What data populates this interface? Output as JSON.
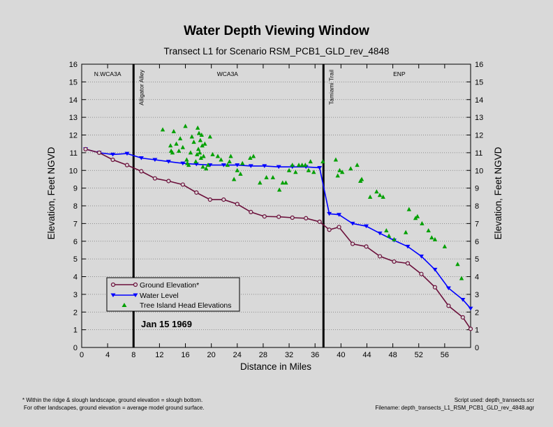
{
  "title": "Water Depth Viewing Window",
  "subtitle": "Transect L1 for Scenario RSM_PCB1_GLD_rev_4848",
  "date_label": "Jan 15 1969",
  "footnote_left": [
    "* Within the ridge & slough landscape, ground elevation = slough bottom.",
    "For other landscapes, ground elevation = average model ground surface."
  ],
  "footnote_right": [
    "Script used: depth_transects.scr",
    "Filename: depth_transects_L1_RSM_PCB1_GLD_rev_4848.agr"
  ],
  "chart_data": {
    "type": "line",
    "xlabel": "Distance in Miles",
    "ylabel_left": "Elevation, Feet NGVD",
    "ylabel_right": "Elevation, Feet NGVD",
    "xlim": [
      0,
      60
    ],
    "ylim": [
      0,
      16
    ],
    "x_ticks": [
      0,
      4,
      8,
      12,
      16,
      20,
      24,
      28,
      32,
      36,
      40,
      44,
      48,
      52,
      56
    ],
    "y_ticks": [
      0,
      1,
      2,
      3,
      4,
      5,
      6,
      7,
      8,
      9,
      10,
      11,
      12,
      13,
      14,
      15,
      16
    ],
    "colors": {
      "ground": "#6b0f3a",
      "water": "#0000ff",
      "tree": "#00a000",
      "background": "#d9d9d9"
    },
    "regions": [
      {
        "label": "N.WCA3A",
        "x": 4
      },
      {
        "label": "WCA3A",
        "x": 22.5
      },
      {
        "label": "ENP",
        "x": 49
      }
    ],
    "boundaries": [
      {
        "x": 8,
        "label": "Alligator Alley"
      },
      {
        "x": 37.3,
        "label": "Tamiami Trail"
      }
    ],
    "legend": {
      "placement": "lower-left",
      "entries": [
        "Ground Elevation*",
        "Water Level",
        "Tree Island Head Elevations"
      ]
    },
    "series": [
      {
        "name": "Ground Elevation*",
        "marker": "circle",
        "x": [
          0.6,
          2.7,
          4.8,
          7.0,
          9.2,
          11.3,
          13.4,
          15.6,
          17.7,
          19.8,
          21.9,
          24.0,
          26.1,
          28.2,
          30.4,
          32.5,
          34.6,
          36.7,
          38.2,
          39.7,
          41.8,
          43.9,
          46.0,
          48.2,
          50.3,
          52.4,
          54.5,
          56.6,
          58.8,
          60.0
        ],
        "y": [
          11.2,
          11.0,
          10.6,
          10.3,
          9.95,
          9.55,
          9.4,
          9.2,
          8.75,
          8.35,
          8.35,
          8.1,
          7.65,
          7.4,
          7.38,
          7.33,
          7.3,
          7.1,
          6.65,
          6.8,
          5.85,
          5.7,
          5.15,
          4.85,
          4.75,
          4.15,
          3.4,
          2.35,
          1.7,
          1.05
        ]
      },
      {
        "name": "Water Level",
        "marker": "triangle-down",
        "x": [
          0.6,
          2.7,
          4.8,
          7.0,
          9.2,
          11.3,
          13.4,
          15.6,
          17.7,
          19.8,
          21.9,
          24.0,
          26.1,
          28.2,
          30.4,
          32.5,
          34.6,
          36.7,
          38.2,
          39.7,
          41.8,
          43.9,
          46.0,
          48.2,
          50.3,
          52.4,
          54.5,
          56.6,
          58.8,
          60.0
        ],
        "y": [
          11.2,
          11.0,
          10.9,
          10.95,
          10.7,
          10.6,
          10.5,
          10.4,
          10.35,
          10.3,
          10.3,
          10.3,
          10.25,
          10.25,
          10.2,
          10.2,
          10.2,
          10.15,
          7.55,
          7.5,
          7.0,
          6.85,
          6.45,
          6.05,
          5.7,
          5.15,
          4.4,
          3.35,
          2.7,
          2.2
        ]
      },
      {
        "name": "Tree Island Head Elevations",
        "marker": "triangle-up",
        "x": [
          12.5,
          13.7,
          13.8,
          14.0,
          14.2,
          14.6,
          15.0,
          15.2,
          15.6,
          16.0,
          16.2,
          16.3,
          16.5,
          16.8,
          17.0,
          17.3,
          17.6,
          17.8,
          17.9,
          18.0,
          18.1,
          18.2,
          18.3,
          18.4,
          18.5,
          18.6,
          18.7,
          18.8,
          19.0,
          19.2,
          19.5,
          19.8,
          20.2,
          21.0,
          21.5,
          22.5,
          22.8,
          23.0,
          23.5,
          24.0,
          24.5,
          24.8,
          26.0,
          26.5,
          27.5,
          28.5,
          29.5,
          30.5,
          31.0,
          31.5,
          32.0,
          32.5,
          33.0,
          33.5,
          34.0,
          34.5,
          35.0,
          35.3,
          35.8,
          37.2,
          39.2,
          39.5,
          39.8,
          40.2,
          41.5,
          42.5,
          43.0,
          43.2,
          44.5,
          45.5,
          46.0,
          46.5,
          47.0,
          47.4,
          48.2,
          50.0,
          50.5,
          51.5,
          51.8,
          52.5,
          53.5,
          54.0,
          54.5,
          56.0,
          58.0,
          58.6
        ],
        "y": [
          12.3,
          11.4,
          11.1,
          11.0,
          12.2,
          11.5,
          11.1,
          11.8,
          11.3,
          12.5,
          10.6,
          10.4,
          10.3,
          11.0,
          11.9,
          11.6,
          10.5,
          10.9,
          12.4,
          11.2,
          12.1,
          11.0,
          11.7,
          10.7,
          12.0,
          11.4,
          10.2,
          10.8,
          11.5,
          10.1,
          10.3,
          11.9,
          10.9,
          10.8,
          10.6,
          10.3,
          10.5,
          10.8,
          9.5,
          10.0,
          9.8,
          10.4,
          10.7,
          10.8,
          9.3,
          9.6,
          9.6,
          8.9,
          9.3,
          9.3,
          10.0,
          10.3,
          9.9,
          10.3,
          10.3,
          10.3,
          10.0,
          10.5,
          9.9,
          10.5,
          10.6,
          9.7,
          10.0,
          9.9,
          10.1,
          10.3,
          9.4,
          9.5,
          8.5,
          8.8,
          8.6,
          8.5,
          6.6,
          6.3,
          6.1,
          6.5,
          7.8,
          7.3,
          7.4,
          7.0,
          6.6,
          6.2,
          6.1,
          5.7,
          4.7,
          3.9
        ]
      }
    ]
  }
}
